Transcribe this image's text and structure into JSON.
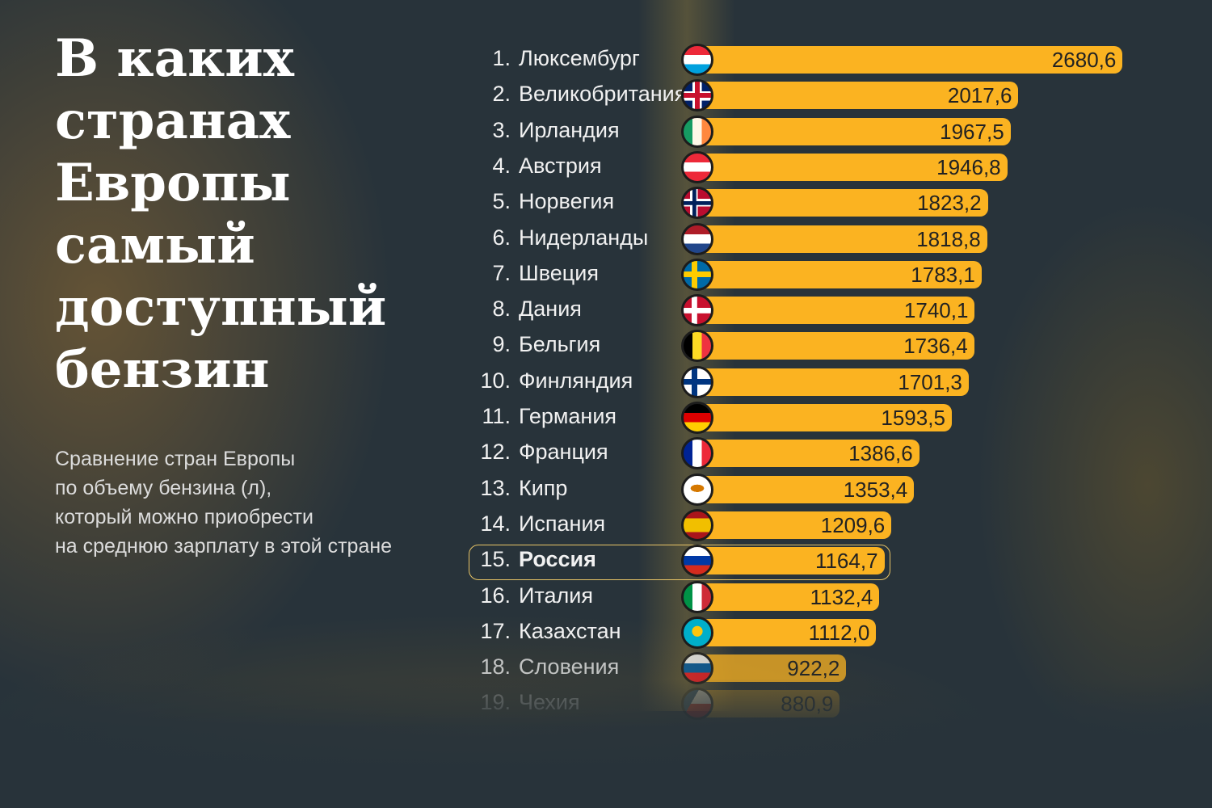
{
  "title": "В каких\nстранах\nЕвропы\nсамый\nдоступный\nбензин",
  "subtitle": "Сравнение стран Европы\nпо объему бензина (л),\nкоторый можно приобрести\nна среднюю зарплату в этой стране",
  "chart_data": {
    "type": "bar",
    "orientation": "horizontal",
    "title": "В каких странах Европы самый доступный бензин",
    "unit": "л",
    "highlight": "Россия",
    "categories": [
      "Люксембург",
      "Великобритания",
      "Ирландия",
      "Австрия",
      "Норвегия",
      "Нидерланды",
      "Швеция",
      "Дания",
      "Бельгия",
      "Финляндия",
      "Германия",
      "Франция",
      "Кипр",
      "Испания",
      "Россия",
      "Италия",
      "Казахстан",
      "Словения",
      "Чехия"
    ],
    "ranks": [
      "1.",
      "2.",
      "3.",
      "4.",
      "5.",
      "6.",
      "7.",
      "8.",
      "9.",
      "10.",
      "11.",
      "12.",
      "13.",
      "14.",
      "15.",
      "16.",
      "17.",
      "18.",
      "19."
    ],
    "values": [
      2680.6,
      2017.6,
      1967.5,
      1946.8,
      1823.2,
      1818.8,
      1783.1,
      1740.1,
      1736.4,
      1701.3,
      1593.5,
      1386.6,
      1353.4,
      1209.6,
      1164.7,
      1132.4,
      1112.0,
      922.2,
      880.9
    ],
    "value_labels": [
      "2680,6",
      "2017,6",
      "1967,5",
      "1946,8",
      "1823,2",
      "1818,8",
      "1783,1",
      "1740,1",
      "1736,4",
      "1701,3",
      "1593,5",
      "1386,6",
      "1353,4",
      "1209,6",
      "1164,7",
      "1132,4",
      "1112,0",
      "922,2",
      "880,9"
    ],
    "flags": [
      "lu",
      "gb",
      "ie",
      "at",
      "no",
      "nl",
      "se",
      "dk",
      "be",
      "fi",
      "de",
      "fr",
      "cy",
      "es",
      "ru",
      "it",
      "kz",
      "si",
      "cz"
    ]
  },
  "colors": {
    "bar": "#fbb321",
    "background": "#28333a",
    "highlight": "#e8c466"
  }
}
